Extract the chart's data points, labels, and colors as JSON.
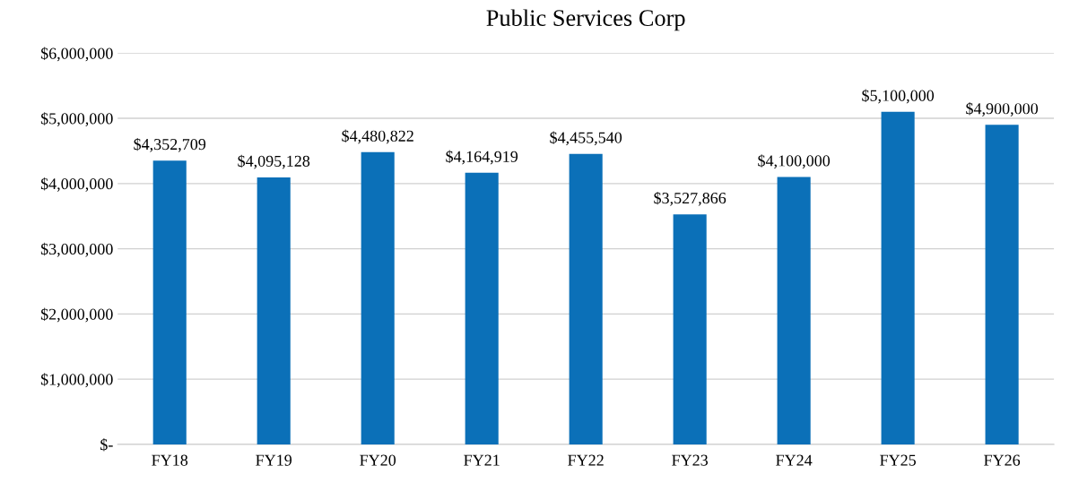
{
  "chart_data": {
    "type": "bar",
    "title": "Public Services Corp",
    "categories": [
      "FY18",
      "FY19",
      "FY20",
      "FY21",
      "FY22",
      "FY23",
      "FY24",
      "FY25",
      "FY26"
    ],
    "values": [
      4352709,
      4095128,
      4480822,
      4164919,
      4455540,
      3527866,
      4100000,
      5100000,
      4900000
    ],
    "value_labels": [
      "$4,352,709",
      "$4,095,128",
      "$4,480,822",
      "$4,164,919",
      "$4,455,540",
      "$3,527,866",
      "$4,100,000",
      "$5,100,000",
      "$4,900,000"
    ],
    "color": "#0b70b8",
    "ylim": [
      0,
      6000000
    ],
    "yticks": [
      {
        "value": 0,
        "label": "$-"
      },
      {
        "value": 1000000,
        "label": "$1,000,000"
      },
      {
        "value": 2000000,
        "label": "$2,000,000"
      },
      {
        "value": 3000000,
        "label": "$3,000,000"
      },
      {
        "value": 4000000,
        "label": "$4,000,000"
      },
      {
        "value": 5000000,
        "label": "$5,000,000"
      },
      {
        "value": 6000000,
        "label": "$6,000,000"
      }
    ],
    "grid": "y"
  }
}
